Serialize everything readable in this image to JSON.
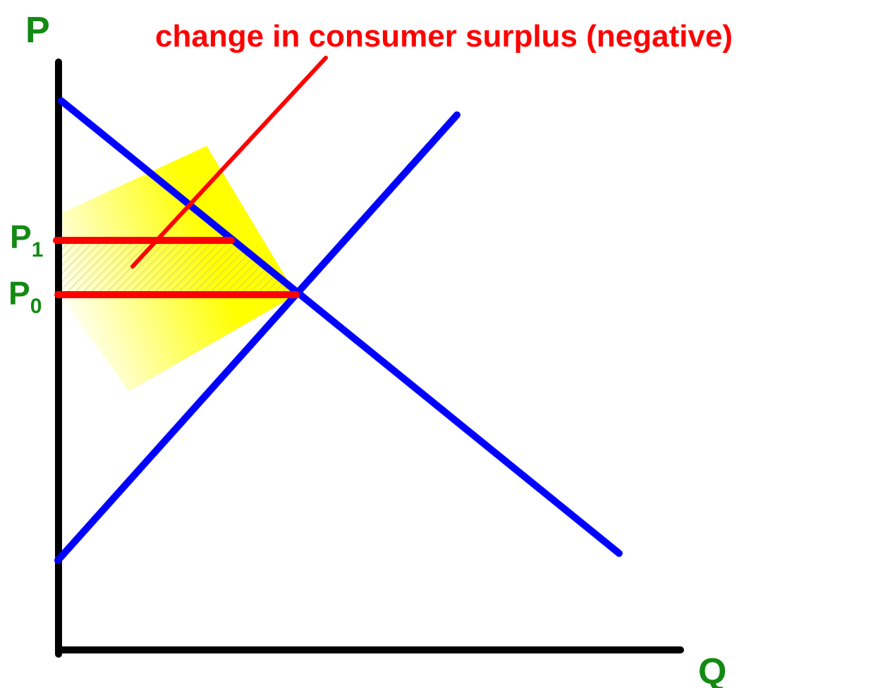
{
  "axes": {
    "y_label": "P",
    "x_label": "Q"
  },
  "price_labels": [
    {
      "letter": "P",
      "subscript": "1"
    },
    {
      "letter": "P",
      "subscript": "0"
    }
  ],
  "annotation": "change in consumer surplus (negative)"
}
